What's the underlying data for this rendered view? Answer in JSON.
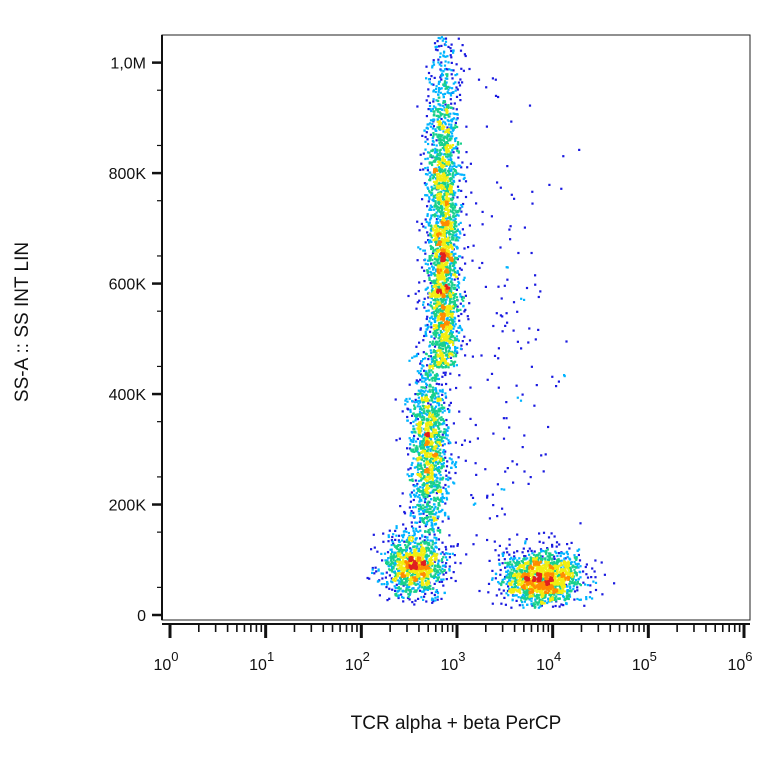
{
  "chart_data": {
    "type": "scatter",
    "subtype": "flow-cytometry-density-dot-plot",
    "title": "",
    "xlabel": "TCR alpha + beta PerCP",
    "ylabel": "SS-A :: SS INT LIN",
    "x_scale": "log",
    "x_range": [
      1,
      1000000
    ],
    "x_ticks": [
      {
        "value": 1,
        "base": "10",
        "exp": "0"
      },
      {
        "value": 10,
        "base": "10",
        "exp": "1"
      },
      {
        "value": 100,
        "base": "10",
        "exp": "2"
      },
      {
        "value": 1000,
        "base": "10",
        "exp": "3"
      },
      {
        "value": 10000,
        "base": "10",
        "exp": "4"
      },
      {
        "value": 100000,
        "base": "10",
        "exp": "5"
      },
      {
        "value": 1000000,
        "base": "10",
        "exp": "6"
      }
    ],
    "y_scale": "linear",
    "y_range": [
      0,
      1050000
    ],
    "y_ticks": [
      {
        "value": 0,
        "label": "0"
      },
      {
        "value": 200000,
        "label": "200K"
      },
      {
        "value": 400000,
        "label": "400K"
      },
      {
        "value": 600000,
        "label": "600K"
      },
      {
        "value": 800000,
        "label": "800K"
      },
      {
        "value": 1000000,
        "label": "1,0M"
      }
    ],
    "grid": false,
    "legend": "none",
    "colormap": [
      "#1a1ae0",
      "#00b4ff",
      "#18d08c",
      "#f2ee10",
      "#ff8c00",
      "#e02020"
    ],
    "populations": [
      {
        "x_center": 700,
        "x_spread_decades": 0.09,
        "y_center": 650000,
        "y_spread": 200000,
        "y_min": 450000,
        "y_max": 1050000,
        "n": 2600
      },
      {
        "x_center": 500,
        "x_spread_decades": 0.1,
        "y_center": 300000,
        "y_spread": 90000,
        "y_min": 150000,
        "y_max": 480000,
        "n": 1300
      },
      {
        "x_center": 360,
        "x_spread_decades": 0.16,
        "y_center": 90000,
        "y_spread": 30000,
        "y_min": 20000,
        "y_max": 180000,
        "n": 1100
      },
      {
        "x_center": 7500,
        "x_spread_decades": 0.2,
        "y_center": 70000,
        "y_spread": 25000,
        "y_min": 15000,
        "y_max": 160000,
        "n": 1500
      },
      {
        "x_center": 2500,
        "x_spread_decades": 0.35,
        "y_center": 500000,
        "y_spread": 300000,
        "y_min": 100000,
        "y_max": 1000000,
        "n": 180
      }
    ]
  }
}
